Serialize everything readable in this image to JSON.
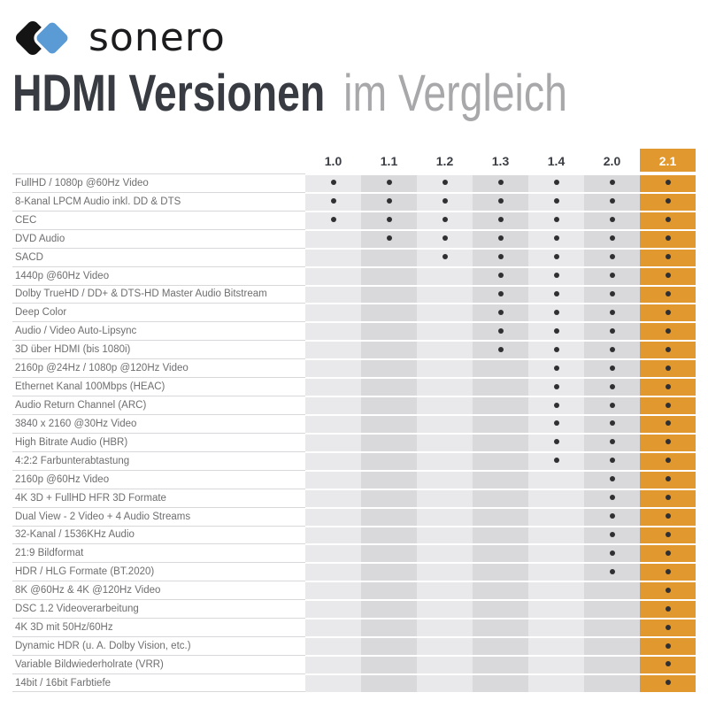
{
  "brand": {
    "name": "sonero"
  },
  "title": {
    "main": "HDMI Versionen",
    "sub": "im Vergleich"
  },
  "chart_data": {
    "type": "table",
    "title": "HDMI Versionen im Vergleich",
    "columns": [
      "1.0",
      "1.1",
      "1.2",
      "1.3",
      "1.4",
      "2.0",
      "2.1"
    ],
    "highlight_column": "2.1",
    "cell_marker": "dot = Feature unterstützt",
    "rows": [
      {
        "feature": "FullHD / 1080p @60Hz Video",
        "values": [
          1,
          1,
          1,
          1,
          1,
          1,
          1
        ]
      },
      {
        "feature": "8-Kanal LPCM Audio inkl. DD & DTS",
        "values": [
          1,
          1,
          1,
          1,
          1,
          1,
          1
        ]
      },
      {
        "feature": "CEC",
        "values": [
          1,
          1,
          1,
          1,
          1,
          1,
          1
        ]
      },
      {
        "feature": "DVD Audio",
        "values": [
          0,
          1,
          1,
          1,
          1,
          1,
          1
        ]
      },
      {
        "feature": "SACD",
        "values": [
          0,
          0,
          1,
          1,
          1,
          1,
          1
        ]
      },
      {
        "feature": "1440p @60Hz Video",
        "values": [
          0,
          0,
          0,
          1,
          1,
          1,
          1
        ]
      },
      {
        "feature": "Dolby TrueHD / DD+ & DTS-HD Master Audio Bitstream",
        "values": [
          0,
          0,
          0,
          1,
          1,
          1,
          1
        ]
      },
      {
        "feature": "Deep Color",
        "values": [
          0,
          0,
          0,
          1,
          1,
          1,
          1
        ]
      },
      {
        "feature": "Audio / Video Auto-Lipsync",
        "values": [
          0,
          0,
          0,
          1,
          1,
          1,
          1
        ]
      },
      {
        "feature": "3D über HDMI (bis 1080i)",
        "values": [
          0,
          0,
          0,
          1,
          1,
          1,
          1
        ]
      },
      {
        "feature": "2160p @24Hz / 1080p @120Hz Video",
        "values": [
          0,
          0,
          0,
          0,
          1,
          1,
          1
        ]
      },
      {
        "feature": "Ethernet Kanal 100Mbps (HEAC)",
        "values": [
          0,
          0,
          0,
          0,
          1,
          1,
          1
        ]
      },
      {
        "feature": "Audio Return Channel (ARC)",
        "values": [
          0,
          0,
          0,
          0,
          1,
          1,
          1
        ]
      },
      {
        "feature": "3840 x 2160 @30Hz Video",
        "values": [
          0,
          0,
          0,
          0,
          1,
          1,
          1
        ]
      },
      {
        "feature": "High Bitrate Audio (HBR)",
        "values": [
          0,
          0,
          0,
          0,
          1,
          1,
          1
        ]
      },
      {
        "feature": "4:2:2 Farbunterabtastung",
        "values": [
          0,
          0,
          0,
          0,
          1,
          1,
          1
        ]
      },
      {
        "feature": "2160p @60Hz Video",
        "values": [
          0,
          0,
          0,
          0,
          0,
          1,
          1
        ]
      },
      {
        "feature": "4K 3D + FullHD HFR 3D Formate",
        "values": [
          0,
          0,
          0,
          0,
          0,
          1,
          1
        ]
      },
      {
        "feature": "Dual View - 2 Video + 4 Audio Streams",
        "values": [
          0,
          0,
          0,
          0,
          0,
          1,
          1
        ]
      },
      {
        "feature": "32-Kanal / 1536KHz Audio",
        "values": [
          0,
          0,
          0,
          0,
          0,
          1,
          1
        ]
      },
      {
        "feature": "21:9 Bildformat",
        "values": [
          0,
          0,
          0,
          0,
          0,
          1,
          1
        ]
      },
      {
        "feature": "HDR / HLG Formate (BT.2020)",
        "values": [
          0,
          0,
          0,
          0,
          0,
          1,
          1
        ]
      },
      {
        "feature": "8K @60Hz & 4K @120Hz Video",
        "values": [
          0,
          0,
          0,
          0,
          0,
          0,
          1
        ]
      },
      {
        "feature": "DSC 1.2 Videoverarbeitung",
        "values": [
          0,
          0,
          0,
          0,
          0,
          0,
          1
        ]
      },
      {
        "feature": "4K 3D mit 50Hz/60Hz",
        "values": [
          0,
          0,
          0,
          0,
          0,
          0,
          1
        ]
      },
      {
        "feature": "Dynamic HDR (u. A. Dolby Vision, etc.)",
        "values": [
          0,
          0,
          0,
          0,
          0,
          0,
          1
        ]
      },
      {
        "feature": "Variable Bildwiederholrate (VRR)",
        "values": [
          0,
          0,
          0,
          0,
          0,
          0,
          1
        ]
      },
      {
        "feature": "14bit / 16bit Farbtiefe",
        "values": [
          0,
          0,
          0,
          0,
          0,
          0,
          1
        ]
      }
    ]
  },
  "colors": {
    "highlight": "#e0982f",
    "column_light": "#e9e9eb",
    "column_dark": "#d9d9db",
    "dot": "#303033",
    "separator": "#d8d8da",
    "label_text": "#6e6e70",
    "header_text": "#3b3e44",
    "title_dark": "#383b41",
    "title_light": "#a8a8ab",
    "logo_black": "#141414",
    "logo_blue": "#5b9bd5"
  }
}
